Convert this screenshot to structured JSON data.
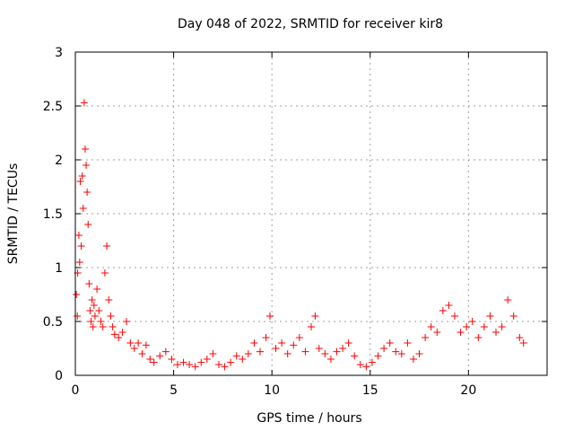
{
  "chart_data": {
    "type": "scatter",
    "title": "Day 048 of 2022, SRMTID for receiver kir8",
    "xlabel": "GPS time / hours",
    "ylabel": "SRMTID / TECUs",
    "xlim": [
      0,
      24
    ],
    "ylim": [
      0,
      3
    ],
    "x_ticks": [
      0,
      5,
      10,
      15,
      20
    ],
    "x_tick_labels": [
      "0",
      "5",
      "10",
      "15",
      "20"
    ],
    "y_ticks": [
      0,
      0.5,
      1,
      1.5,
      2,
      2.5,
      3
    ],
    "y_tick_labels": [
      "0",
      "0.5",
      "1",
      "1.5",
      "2",
      "2.5",
      "3"
    ],
    "grid": true,
    "marker": "+",
    "series": [
      {
        "name": "SRMTID",
        "color": "#ff0000",
        "points": [
          [
            0.05,
            0.75
          ],
          [
            0.1,
            0.55
          ],
          [
            0.12,
            0.95
          ],
          [
            0.18,
            1.3
          ],
          [
            0.22,
            1.05
          ],
          [
            0.25,
            1.8
          ],
          [
            0.3,
            1.2
          ],
          [
            0.35,
            1.85
          ],
          [
            0.4,
            1.55
          ],
          [
            0.45,
            2.53
          ],
          [
            0.5,
            2.1
          ],
          [
            0.55,
            1.95
          ],
          [
            0.6,
            1.7
          ],
          [
            0.65,
            1.4
          ],
          [
            0.7,
            0.85
          ],
          [
            0.75,
            0.6
          ],
          [
            0.8,
            0.5
          ],
          [
            0.85,
            0.7
          ],
          [
            0.9,
            0.45
          ],
          [
            0.95,
            0.65
          ],
          [
            1.0,
            0.55
          ],
          [
            1.1,
            0.8
          ],
          [
            1.2,
            0.6
          ],
          [
            1.3,
            0.5
          ],
          [
            1.4,
            0.45
          ],
          [
            1.5,
            0.95
          ],
          [
            1.6,
            1.2
          ],
          [
            1.7,
            0.7
          ],
          [
            1.8,
            0.55
          ],
          [
            1.9,
            0.45
          ],
          [
            2.0,
            0.38
          ],
          [
            2.2,
            0.35
          ],
          [
            2.4,
            0.4
          ],
          [
            2.6,
            0.5
          ],
          [
            2.8,
            0.3
          ],
          [
            3.0,
            0.25
          ],
          [
            3.2,
            0.3
          ],
          [
            3.4,
            0.2
          ],
          [
            3.6,
            0.28
          ],
          [
            3.8,
            0.15
          ],
          [
            4.0,
            0.12
          ],
          [
            4.3,
            0.18
          ],
          [
            4.6,
            0.22
          ],
          [
            4.9,
            0.15
          ],
          [
            5.2,
            0.1
          ],
          [
            5.5,
            0.12
          ],
          [
            5.8,
            0.1
          ],
          [
            6.1,
            0.08
          ],
          [
            6.4,
            0.12
          ],
          [
            6.7,
            0.15
          ],
          [
            7.0,
            0.2
          ],
          [
            7.3,
            0.1
          ],
          [
            7.6,
            0.08
          ],
          [
            7.9,
            0.12
          ],
          [
            8.2,
            0.18
          ],
          [
            8.5,
            0.15
          ],
          [
            8.8,
            0.2
          ],
          [
            9.1,
            0.3
          ],
          [
            9.4,
            0.22
          ],
          [
            9.7,
            0.35
          ],
          [
            9.9,
            0.55
          ],
          [
            10.2,
            0.25
          ],
          [
            10.5,
            0.3
          ],
          [
            10.8,
            0.2
          ],
          [
            11.1,
            0.28
          ],
          [
            11.4,
            0.35
          ],
          [
            11.7,
            0.22
          ],
          [
            12.0,
            0.45
          ],
          [
            12.2,
            0.55
          ],
          [
            12.4,
            0.25
          ],
          [
            12.7,
            0.2
          ],
          [
            13.0,
            0.15
          ],
          [
            13.3,
            0.22
          ],
          [
            13.6,
            0.25
          ],
          [
            13.9,
            0.3
          ],
          [
            14.2,
            0.18
          ],
          [
            14.5,
            0.1
          ],
          [
            14.8,
            0.08
          ],
          [
            15.1,
            0.12
          ],
          [
            15.4,
            0.18
          ],
          [
            15.7,
            0.25
          ],
          [
            16.0,
            0.3
          ],
          [
            16.3,
            0.22
          ],
          [
            16.6,
            0.2
          ],
          [
            16.9,
            0.3
          ],
          [
            17.2,
            0.15
          ],
          [
            17.5,
            0.2
          ],
          [
            17.8,
            0.35
          ],
          [
            18.1,
            0.45
          ],
          [
            18.4,
            0.4
          ],
          [
            18.7,
            0.6
          ],
          [
            19.0,
            0.65
          ],
          [
            19.3,
            0.55
          ],
          [
            19.6,
            0.4
          ],
          [
            19.9,
            0.45
          ],
          [
            20.2,
            0.5
          ],
          [
            20.5,
            0.35
          ],
          [
            20.8,
            0.45
          ],
          [
            21.1,
            0.55
          ],
          [
            21.4,
            0.4
          ],
          [
            21.7,
            0.45
          ],
          [
            22.0,
            0.7
          ],
          [
            22.3,
            0.55
          ],
          [
            22.6,
            0.35
          ],
          [
            22.8,
            0.3
          ]
        ]
      }
    ]
  }
}
